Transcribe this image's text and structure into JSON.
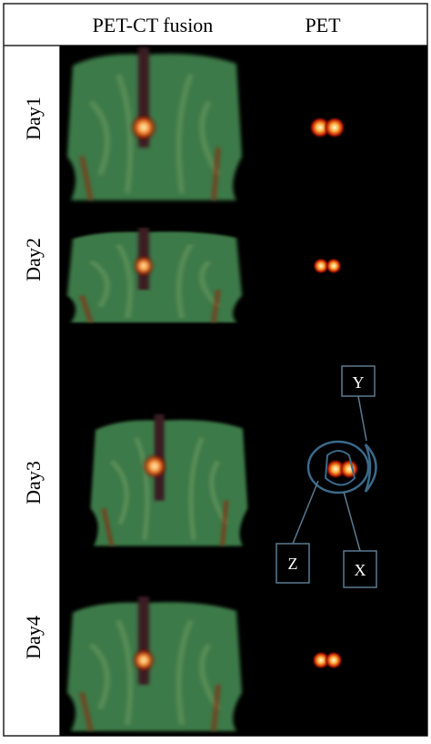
{
  "header": {
    "columns": [
      "PET-CT fusion",
      "PET"
    ]
  },
  "rows": [
    {
      "label": "Day1"
    },
    {
      "label": "Day2"
    },
    {
      "label": "Day3"
    },
    {
      "label": "Day4"
    }
  ],
  "annotations": [
    "Y",
    "Z",
    "X"
  ]
}
